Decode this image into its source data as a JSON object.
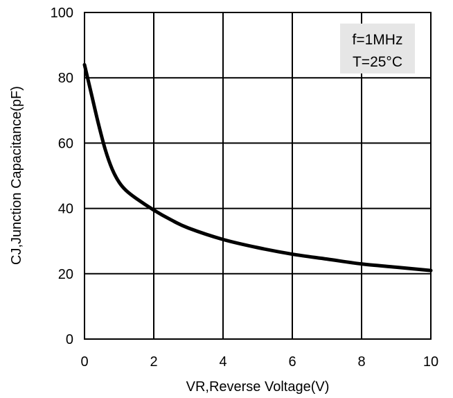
{
  "chart_data": {
    "type": "line",
    "xlabel": "VR,Reverse Voltage(V)",
    "ylabel": "CJ,Junction Capacitance(pF)",
    "xlim": [
      0,
      10
    ],
    "ylim": [
      0,
      100
    ],
    "x_ticks": [
      "0",
      "2",
      "4",
      "6",
      "8",
      "10"
    ],
    "y_ticks": [
      "0",
      "20",
      "40",
      "60",
      "80",
      "100"
    ],
    "grid": true,
    "annotations": [
      "f=1MHz",
      "T=25°C"
    ],
    "annotation_box_color": "#e6e6e6",
    "line_color": "#000000",
    "series": [
      {
        "x": [
          0,
          0.2,
          0.4,
          0.6,
          0.8,
          1.0,
          1.2,
          1.5,
          2.0,
          2.5,
          3.0,
          4.0,
          5.0,
          6.0,
          7.0,
          8.0,
          9.0,
          10.0
        ],
        "y": [
          84,
          75,
          66,
          58,
          52,
          48,
          45.5,
          43,
          39.5,
          36.5,
          34,
          30.5,
          28,
          26,
          24.5,
          23,
          22,
          21
        ]
      }
    ]
  }
}
